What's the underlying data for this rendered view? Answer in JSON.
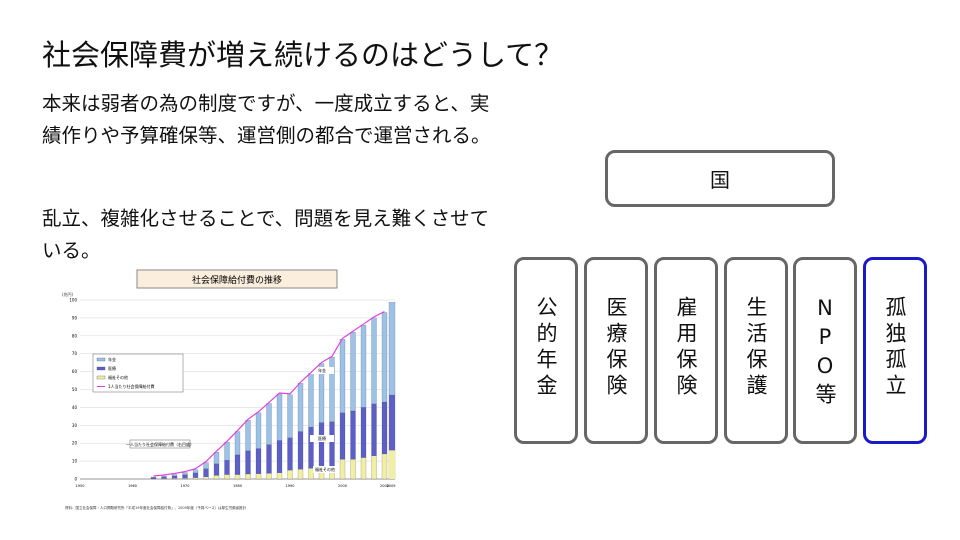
{
  "slide": {
    "title": "社会保障費が増え続けるのはどうして？",
    "paragraph1": "本来は弱者の為の制度ですが、一度成立すると、実績作りや予算確保等、運営側の都合で運営される。",
    "paragraph2": "乱立、複雑化させることで、問題を見え難くさせている。"
  },
  "diagram": {
    "top": "国",
    "columns": [
      {
        "label": "公的年金",
        "color": "#666666"
      },
      {
        "label": "医療保険",
        "color": "#666666"
      },
      {
        "label": "雇用保険",
        "color": "#666666"
      },
      {
        "label": "生活保護",
        "color": "#666666"
      },
      {
        "label": "NPO等",
        "color": "#666666"
      },
      {
        "label": "孤独孤立",
        "color": "#1a1ac8"
      }
    ]
  },
  "embedded_chart": {
    "title": "社会保障給付費の推移",
    "y_unit": "(兆円)",
    "y_ticks": [
      "0",
      "10",
      "20",
      "30",
      "40",
      "50",
      "60",
      "70",
      "80",
      "90",
      "100"
    ],
    "x_ticks": [
      "1950",
      "1960",
      "1970",
      "1980",
      "1990",
      "2000",
      "2008",
      "2009"
    ],
    "legend": [
      "年金",
      "医療",
      "福祉その他",
      "1人当たり社会保障給付費"
    ],
    "callout": "一人当たり社会保障給付費（右目盛）",
    "inline_labels": [
      "年金",
      "医療",
      "福祉その他"
    ],
    "colors": {
      "pension": "#9cc3e6",
      "medical": "#5b5fc7",
      "welfare": "#f2f0a0",
      "per_capita": "#e040e0"
    },
    "source_note": "資料：国立社会保障・人口問題研究所「平成19年度社会保障給付費」、2009年度（予算ベース）は厚生労働省推計",
    "years": [
      1964,
      1966,
      1968,
      1970,
      1972,
      1974,
      1976,
      1978,
      1980,
      1982,
      1984,
      1986,
      1988,
      1990,
      1992,
      1994,
      1996,
      1998,
      2000,
      2002,
      2004,
      2006,
      2008
    ],
    "pension": [
      0.3,
      0.5,
      0.8,
      1.2,
      1.8,
      3.5,
      6.5,
      10,
      13,
      17,
      20,
      23,
      26,
      24,
      27,
      30,
      33,
      36,
      41,
      44,
      46,
      48,
      50
    ],
    "medical": [
      0.6,
      0.9,
      1.3,
      1.9,
      2.6,
      4.5,
      6.5,
      8,
      11,
      13,
      14,
      16,
      18,
      18,
      21,
      23,
      25,
      25,
      26,
      27,
      28,
      29,
      29
    ],
    "welfare": [
      0.2,
      0.3,
      0.4,
      0.5,
      0.8,
      1.2,
      2,
      2.5,
      2.5,
      2.8,
      3,
      3.2,
      3.5,
      5,
      5.5,
      6,
      6.5,
      7,
      11,
      11,
      12,
      13,
      14
    ],
    "total_2009": 98.7
  }
}
